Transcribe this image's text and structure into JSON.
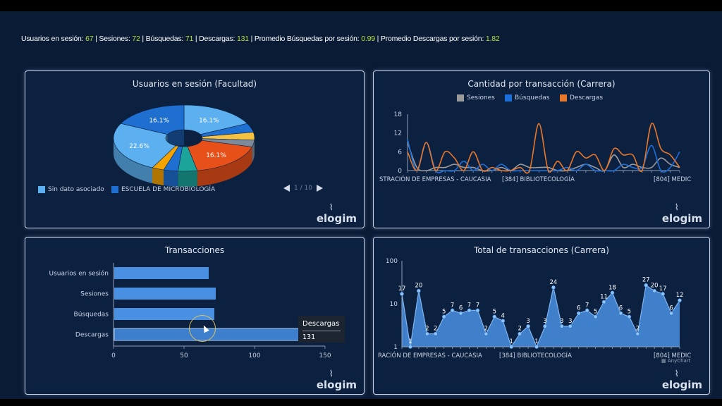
{
  "summary": {
    "usuarios_label": "Usuarios en sesión:",
    "usuarios": "67",
    "sesiones_label": "Sesiones:",
    "sesiones": "72",
    "busquedas_label": "Búsquedas:",
    "busquedas": "71",
    "descargas_label": "Descargas:",
    "descargas": "131",
    "prom_busq_label": "Promedio Búsquedas por sesión:",
    "prom_busq": "0.99",
    "prom_desc_label": "Promedio Descargas por sesión:",
    "prom_desc": "1.82"
  },
  "branding": {
    "logo": "elogim",
    "anychart": "AnyChart"
  },
  "colors": {
    "sesiones": "#9a9a9a",
    "busquedas": "#1c6fd8",
    "descargas": "#e8772a",
    "bars": "#4a90e2",
    "area": "#4a90e2"
  },
  "pie_panel": {
    "title": "Usuarios en sesión (Facultad)",
    "legend": [
      {
        "label": "Sin dato asociado",
        "color": "#5cb0f0"
      },
      {
        "label": "ESCUELA DE MICROBIOLOGÍA",
        "color": "#1f6fd0"
      }
    ],
    "pager": "1 / 10",
    "prev_icon": "triangle-left-icon",
    "next_icon": "triangle-right-icon"
  },
  "line_panel": {
    "title": "Cantidad por transacción (Carrera)",
    "legend": [
      {
        "label": "Sesiones",
        "color": "#9a9a9a"
      },
      {
        "label": "Búsquedas",
        "color": "#1c6fd8"
      },
      {
        "label": "Descargas",
        "color": "#e8772a"
      }
    ],
    "x_labels": [
      "STRACIÓN DE EMPRESAS - CAUCASIA",
      "[384] BIBLIOTECOLOGÍA",
      "[804] MEDIC"
    ]
  },
  "bar_panel": {
    "title": "Transacciones",
    "tooltip": {
      "label": "Descargas",
      "value": "131"
    }
  },
  "area_panel": {
    "title": "Total de transacciones (Carrera)",
    "x_labels": [
      "RACIÓN DE EMPRESAS - CAUCASIA",
      "[384] BIBLIOTECOLOGÍA",
      "[804] MEDIC"
    ]
  },
  "chart_data": [
    {
      "type": "pie",
      "title": "Usuarios en sesión (Facultad)",
      "labels": [
        "16.1%",
        "22.6%",
        "16.1%",
        "16.1%"
      ],
      "slices": [
        {
          "value": 16.1,
          "color": "#5cb0f0"
        },
        {
          "value": 4,
          "color": "#1f6fd0"
        },
        {
          "value": 3.5,
          "color": "#f5c242"
        },
        {
          "value": 3,
          "color": "#7d8a99"
        },
        {
          "value": 16.1,
          "color": "#e8501a"
        },
        {
          "value": 4,
          "color": "#1ca39a"
        },
        {
          "value": 3,
          "color": "#1f6fd0"
        },
        {
          "value": 2.5,
          "color": "#f5a300"
        },
        {
          "value": 22.6,
          "color": "#5cb0f0"
        },
        {
          "value": 16.1,
          "color": "#1f6fd0"
        }
      ]
    },
    {
      "type": "line",
      "title": "Cantidad por transacción (Carrera)",
      "ylim": [
        0,
        18
      ],
      "yticks": [
        0,
        6,
        12,
        18
      ],
      "series": [
        {
          "name": "Sesiones",
          "values": [
            9,
            1,
            0,
            1,
            1,
            2,
            1,
            1,
            0,
            0,
            1,
            0,
            2,
            1,
            1,
            1,
            0,
            0,
            1,
            2,
            1,
            0,
            5,
            1,
            2,
            1,
            1,
            4,
            2,
            1
          ]
        },
        {
          "name": "Búsquedas",
          "values": [
            10,
            0,
            9,
            0,
            0,
            0,
            3,
            0,
            2,
            0,
            2,
            0,
            0,
            0,
            0,
            0,
            0,
            1,
            0,
            2,
            0,
            0,
            0,
            2,
            1,
            1,
            8,
            0,
            1,
            6
          ]
        },
        {
          "name": "Descargas",
          "values": [
            6,
            0,
            9,
            0,
            6,
            4,
            0,
            6,
            0,
            1,
            0,
            0,
            1,
            0,
            15,
            0,
            3,
            0,
            6,
            4,
            5,
            0,
            7,
            5,
            5,
            0,
            15,
            7,
            5,
            1
          ]
        }
      ]
    },
    {
      "type": "bar",
      "title": "Transacciones",
      "categories": [
        "Usuarios en sesión",
        "Sesiones",
        "Búsquedas",
        "Descargas"
      ],
      "values": [
        67,
        72,
        71,
        131
      ],
      "xlim": [
        0,
        150
      ],
      "xticks": [
        0,
        50,
        100,
        150
      ]
    },
    {
      "type": "area",
      "title": "Total de transacciones (Carrera)",
      "yscale": "log",
      "ylim": [
        1,
        100
      ],
      "yticks": [
        1,
        10,
        100
      ],
      "values": [
        17,
        1,
        20,
        2,
        2,
        5,
        7,
        6,
        7,
        7,
        2,
        5,
        4,
        1,
        2,
        3,
        1,
        3,
        24,
        3,
        3,
        6,
        7,
        5,
        11,
        18,
        6,
        5,
        2,
        27,
        20,
        17,
        6,
        12
      ]
    }
  ]
}
